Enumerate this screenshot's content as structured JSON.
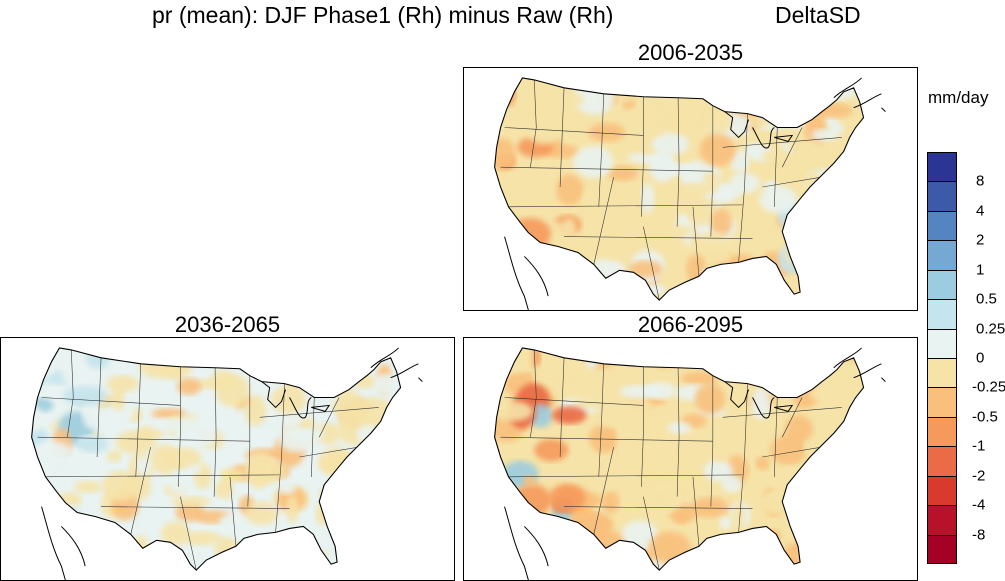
{
  "figure": {
    "title": "pr (mean): DJF Phase1 (Rh) minus Raw (Rh)",
    "method": "DeltaSD"
  },
  "panels": [
    {
      "id": "p1",
      "title": "2006-2035",
      "palette_bias": "mostly-negative"
    },
    {
      "id": "p2",
      "title": "2036-2065",
      "palette_bias": "mixed"
    },
    {
      "id": "p3",
      "title": "2066-2095",
      "palette_bias": "negative-west"
    }
  ],
  "colorbar": {
    "units": "mm/day",
    "labels": [
      "8",
      "4",
      "2",
      "1",
      "0.5",
      "0.25",
      "0",
      "-0.25",
      "-0.5",
      "-1",
      "-2",
      "-4",
      "-8"
    ],
    "colors": [
      "#2b3594",
      "#3d5aa8",
      "#5485c0",
      "#75a9d3",
      "#9cccdf",
      "#c4e4ee",
      "#e9f3f1",
      "#f6e3a8",
      "#f9c07d",
      "#f59a5b",
      "#ea6b45",
      "#d83a2e",
      "#b7122a",
      "#a50026"
    ]
  }
}
